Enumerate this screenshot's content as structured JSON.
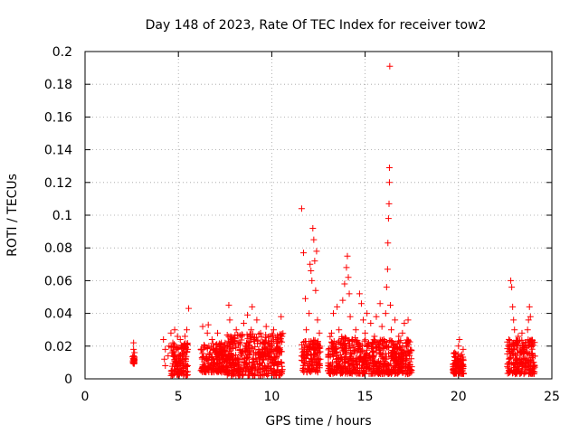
{
  "chart_data": {
    "type": "scatter",
    "title": "Day 148 of 2023, Rate Of TEC Index for receiver tow2",
    "xlabel": "GPS time / hours",
    "ylabel": "ROTI / TECUs",
    "xlim": [
      0,
      25
    ],
    "ylim": [
      0,
      0.2
    ],
    "xticks": [
      0,
      5,
      10,
      15,
      20,
      25
    ],
    "xtick_labels": [
      "0",
      "5",
      "10",
      "15",
      "20",
      "25"
    ],
    "yticks": [
      0,
      0.02,
      0.04,
      0.06,
      0.08,
      0.1,
      0.12,
      0.14,
      0.16,
      0.18,
      0.2
    ],
    "ytick_labels": [
      "0",
      "0.02",
      "0.04",
      "0.06",
      "0.08",
      "0.1",
      "0.12",
      "0.14",
      "0.16",
      "0.18",
      "0.2"
    ],
    "grid": true,
    "marker": "+",
    "series": [
      {
        "name": "ROTI",
        "color": "#ff0000",
        "points": [
          [
            2.6,
            0.022
          ],
          [
            2.6,
            0.018
          ],
          [
            2.6,
            0.014
          ],
          [
            2.62,
            0.012
          ],
          [
            2.65,
            0.016
          ],
          [
            2.58,
            0.01
          ],
          [
            4.2,
            0.024
          ],
          [
            4.3,
            0.018
          ],
          [
            4.25,
            0.012
          ],
          [
            4.3,
            0.008
          ],
          [
            4.45,
            0.014
          ],
          [
            4.5,
            0.02
          ],
          [
            4.6,
            0.028
          ],
          [
            4.7,
            0.022
          ],
          [
            4.75,
            0.016
          ],
          [
            4.8,
            0.03
          ],
          [
            4.85,
            0.01
          ],
          [
            4.9,
            0.018
          ],
          [
            4.95,
            0.026
          ],
          [
            5.0,
            0.014
          ],
          [
            5.05,
            0.008
          ],
          [
            5.1,
            0.024
          ],
          [
            5.15,
            0.004
          ],
          [
            5.2,
            0.02
          ],
          [
            5.3,
            0.016
          ],
          [
            5.35,
            0.026
          ],
          [
            5.4,
            0.012
          ],
          [
            5.45,
            0.03
          ],
          [
            5.55,
            0.043
          ],
          [
            5.5,
            0.018
          ],
          [
            6.3,
            0.032
          ],
          [
            6.4,
            0.02
          ],
          [
            6.5,
            0.012
          ],
          [
            6.55,
            0.028
          ],
          [
            6.6,
            0.033
          ],
          [
            6.7,
            0.016
          ],
          [
            6.8,
            0.024
          ],
          [
            6.9,
            0.01
          ],
          [
            7.0,
            0.018
          ],
          [
            7.1,
            0.028
          ],
          [
            7.2,
            0.014
          ],
          [
            7.3,
            0.022
          ],
          [
            7.45,
            0.008
          ],
          [
            7.6,
            0.02
          ],
          [
            7.7,
            0.045
          ],
          [
            7.75,
            0.036
          ],
          [
            7.8,
            0.026
          ],
          [
            7.9,
            0.014
          ],
          [
            8.0,
            0.022
          ],
          [
            8.1,
            0.03
          ],
          [
            8.2,
            0.012
          ],
          [
            8.3,
            0.018
          ],
          [
            8.4,
            0.026
          ],
          [
            8.5,
            0.034
          ],
          [
            8.55,
            0.01
          ],
          [
            8.65,
            0.022
          ],
          [
            8.7,
            0.039
          ],
          [
            8.8,
            0.016
          ],
          [
            8.9,
            0.03
          ],
          [
            8.95,
            0.044
          ],
          [
            9.05,
            0.024
          ],
          [
            9.15,
            0.012
          ],
          [
            9.2,
            0.036
          ],
          [
            9.3,
            0.018
          ],
          [
            9.4,
            0.028
          ],
          [
            9.5,
            0.008
          ],
          [
            9.6,
            0.022
          ],
          [
            9.7,
            0.032
          ],
          [
            9.8,
            0.014
          ],
          [
            9.9,
            0.026
          ],
          [
            10.0,
            0.018
          ],
          [
            10.1,
            0.03
          ],
          [
            10.2,
            0.01
          ],
          [
            10.3,
            0.022
          ],
          [
            10.4,
            0.016
          ],
          [
            10.5,
            0.038
          ],
          [
            10.55,
            0.026
          ],
          [
            11.6,
            0.104
          ],
          [
            11.7,
            0.077
          ],
          [
            11.8,
            0.049
          ],
          [
            11.85,
            0.03
          ],
          [
            11.9,
            0.018
          ],
          [
            12.0,
            0.04
          ],
          [
            12.05,
            0.07
          ],
          [
            12.1,
            0.066
          ],
          [
            12.15,
            0.06
          ],
          [
            12.2,
            0.092
          ],
          [
            12.25,
            0.085
          ],
          [
            12.3,
            0.072
          ],
          [
            12.35,
            0.054
          ],
          [
            12.4,
            0.078
          ],
          [
            12.45,
            0.036
          ],
          [
            12.5,
            0.02
          ],
          [
            12.55,
            0.028
          ],
          [
            12.6,
            0.012
          ],
          [
            13.2,
            0.028
          ],
          [
            13.3,
            0.04
          ],
          [
            13.4,
            0.018
          ],
          [
            13.5,
            0.044
          ],
          [
            13.6,
            0.03
          ],
          [
            13.7,
            0.022
          ],
          [
            13.8,
            0.048
          ],
          [
            13.9,
            0.058
          ],
          [
            14.0,
            0.068
          ],
          [
            14.05,
            0.075
          ],
          [
            14.1,
            0.062
          ],
          [
            14.15,
            0.052
          ],
          [
            14.2,
            0.038
          ],
          [
            14.3,
            0.024
          ],
          [
            14.4,
            0.016
          ],
          [
            14.5,
            0.03
          ],
          [
            14.7,
            0.052
          ],
          [
            14.8,
            0.046
          ],
          [
            14.9,
            0.036
          ],
          [
            15.0,
            0.028
          ],
          [
            15.1,
            0.04
          ],
          [
            15.2,
            0.02
          ],
          [
            15.3,
            0.034
          ],
          [
            15.4,
            0.014
          ],
          [
            15.5,
            0.026
          ],
          [
            15.6,
            0.038
          ],
          [
            15.7,
            0.022
          ],
          [
            15.8,
            0.046
          ],
          [
            15.9,
            0.032
          ],
          [
            16.0,
            0.024
          ],
          [
            16.1,
            0.04
          ],
          [
            16.15,
            0.056
          ],
          [
            16.2,
            0.067
          ],
          [
            16.22,
            0.083
          ],
          [
            16.25,
            0.098
          ],
          [
            16.28,
            0.107
          ],
          [
            16.3,
            0.12
          ],
          [
            16.3,
            0.129
          ],
          [
            16.32,
            0.191
          ],
          [
            16.35,
            0.045
          ],
          [
            16.4,
            0.03
          ],
          [
            16.5,
            0.02
          ],
          [
            16.6,
            0.036
          ],
          [
            16.7,
            0.012
          ],
          [
            16.8,
            0.026
          ],
          [
            16.9,
            0.018
          ],
          [
            17.0,
            0.028
          ],
          [
            17.1,
            0.034
          ],
          [
            17.2,
            0.022
          ],
          [
            17.3,
            0.036
          ],
          [
            17.4,
            0.016
          ],
          [
            19.8,
            0.016
          ],
          [
            19.9,
            0.01
          ],
          [
            20.0,
            0.02
          ],
          [
            20.05,
            0.024
          ],
          [
            20.1,
            0.012
          ],
          [
            20.2,
            0.008
          ],
          [
            20.25,
            0.018
          ],
          [
            22.7,
            0.024
          ],
          [
            22.8,
            0.06
          ],
          [
            22.85,
            0.056
          ],
          [
            22.9,
            0.044
          ],
          [
            22.95,
            0.036
          ],
          [
            23.0,
            0.03
          ],
          [
            23.1,
            0.02
          ],
          [
            23.2,
            0.026
          ],
          [
            23.3,
            0.016
          ],
          [
            23.4,
            0.028
          ],
          [
            23.5,
            0.012
          ],
          [
            23.6,
            0.022
          ],
          [
            23.7,
            0.03
          ],
          [
            23.75,
            0.036
          ],
          [
            23.8,
            0.044
          ],
          [
            23.85,
            0.038
          ],
          [
            23.9,
            0.02
          ],
          [
            24.0,
            0.014
          ]
        ],
        "dense_bands": [
          {
            "x_range": [
              2.55,
              2.65
            ],
            "y_range": [
              0.009,
              0.014
            ]
          },
          {
            "x_range": [
              4.6,
              5.5
            ],
            "y_range": [
              0.002,
              0.022
            ]
          },
          {
            "x_range": [
              6.2,
              7.6
            ],
            "y_range": [
              0.004,
              0.022
            ]
          },
          {
            "x_range": [
              7.6,
              10.6
            ],
            "y_range": [
              0.002,
              0.028
            ]
          },
          {
            "x_range": [
              11.6,
              12.6
            ],
            "y_range": [
              0.004,
              0.024
            ]
          },
          {
            "x_range": [
              13.0,
              14.6
            ],
            "y_range": [
              0.003,
              0.026
            ]
          },
          {
            "x_range": [
              14.6,
              17.5
            ],
            "y_range": [
              0.003,
              0.024
            ]
          },
          {
            "x_range": [
              19.7,
              20.3
            ],
            "y_range": [
              0.003,
              0.016
            ]
          },
          {
            "x_range": [
              22.6,
              24.1
            ],
            "y_range": [
              0.003,
              0.024
            ]
          }
        ]
      }
    ]
  }
}
